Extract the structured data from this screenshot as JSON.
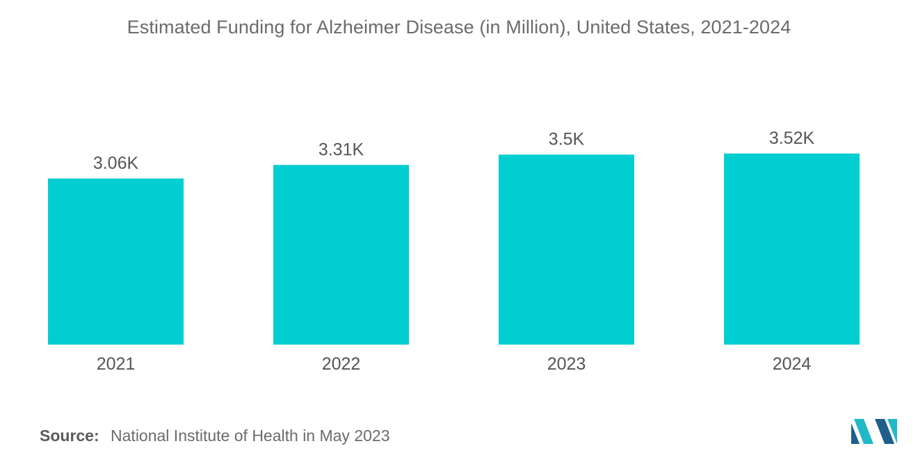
{
  "title": "Estimated Funding for Alzheimer Disease (in Million), United States, 2021-2024",
  "source": {
    "label": "Source:",
    "text": "National Institute of Health in May 2023"
  },
  "colors": {
    "bar": "#00ced1",
    "text": "#6b6b6b",
    "logo_dark": "#1f5f8b",
    "logo_light": "#22b8c8"
  },
  "logo_icon": "mordor-intelligence-logo",
  "chart_data": {
    "type": "bar",
    "title": "Estimated Funding for Alzheimer Disease (in Million), United States, 2021-2024",
    "categories": [
      "2021",
      "2022",
      "2023",
      "2024"
    ],
    "values": [
      3.06,
      3.31,
      3.5,
      3.52
    ],
    "value_labels": [
      "3.06K",
      "3.31K",
      "3.5K",
      "3.52K"
    ],
    "unit": "K",
    "xlabel": "",
    "ylabel": "",
    "ylim": [
      0,
      3.52
    ],
    "grid": false,
    "legend": "none"
  }
}
